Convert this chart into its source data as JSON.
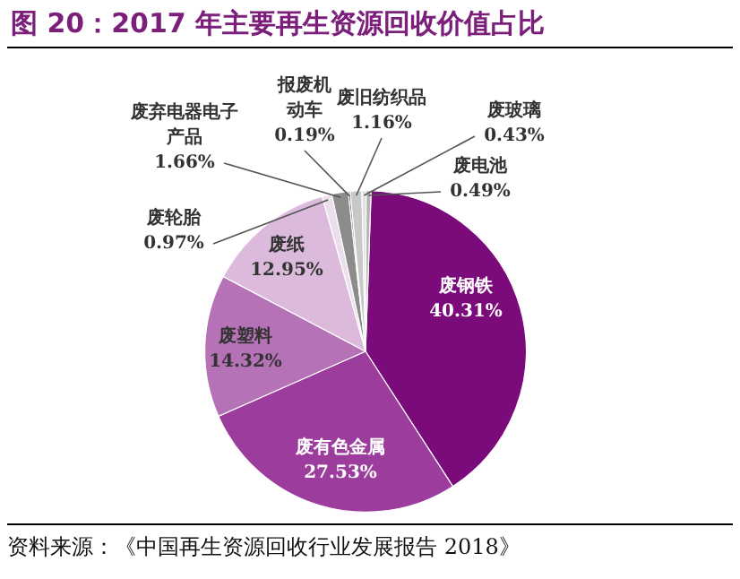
{
  "chart_data": {
    "type": "pie",
    "title": "图 20：2017 年主要再生资源回收价值占比",
    "categories": [
      "废钢铁",
      "废有色金属",
      "废塑料",
      "废纸",
      "废轮胎",
      "废弃电器电子产品",
      "报废机动车",
      "废旧纺织品",
      "废玻璃",
      "废电池"
    ],
    "values": [
      40.31,
      27.53,
      14.32,
      12.95,
      0.97,
      1.66,
      0.19,
      1.16,
      0.43,
      0.49
    ],
    "colors": [
      "#7b0a7b",
      "#9c3c9c",
      "#b672b6",
      "#dbbadb",
      "#ebdfeb",
      "#8c8c8c",
      "#555555",
      "#c8c8c8",
      "#e2e2e2",
      "#b4b4b4"
    ],
    "value_labels": [
      "40.31%",
      "27.53%",
      "14.32%",
      "12.95%",
      "0.97%",
      "1.66%",
      "0.19%",
      "1.16%",
      "0.43%",
      "0.49%"
    ],
    "legend": false,
    "annotations": [
      "资料来源：《中国再生资源回收行业发展报告 2018》"
    ]
  }
}
